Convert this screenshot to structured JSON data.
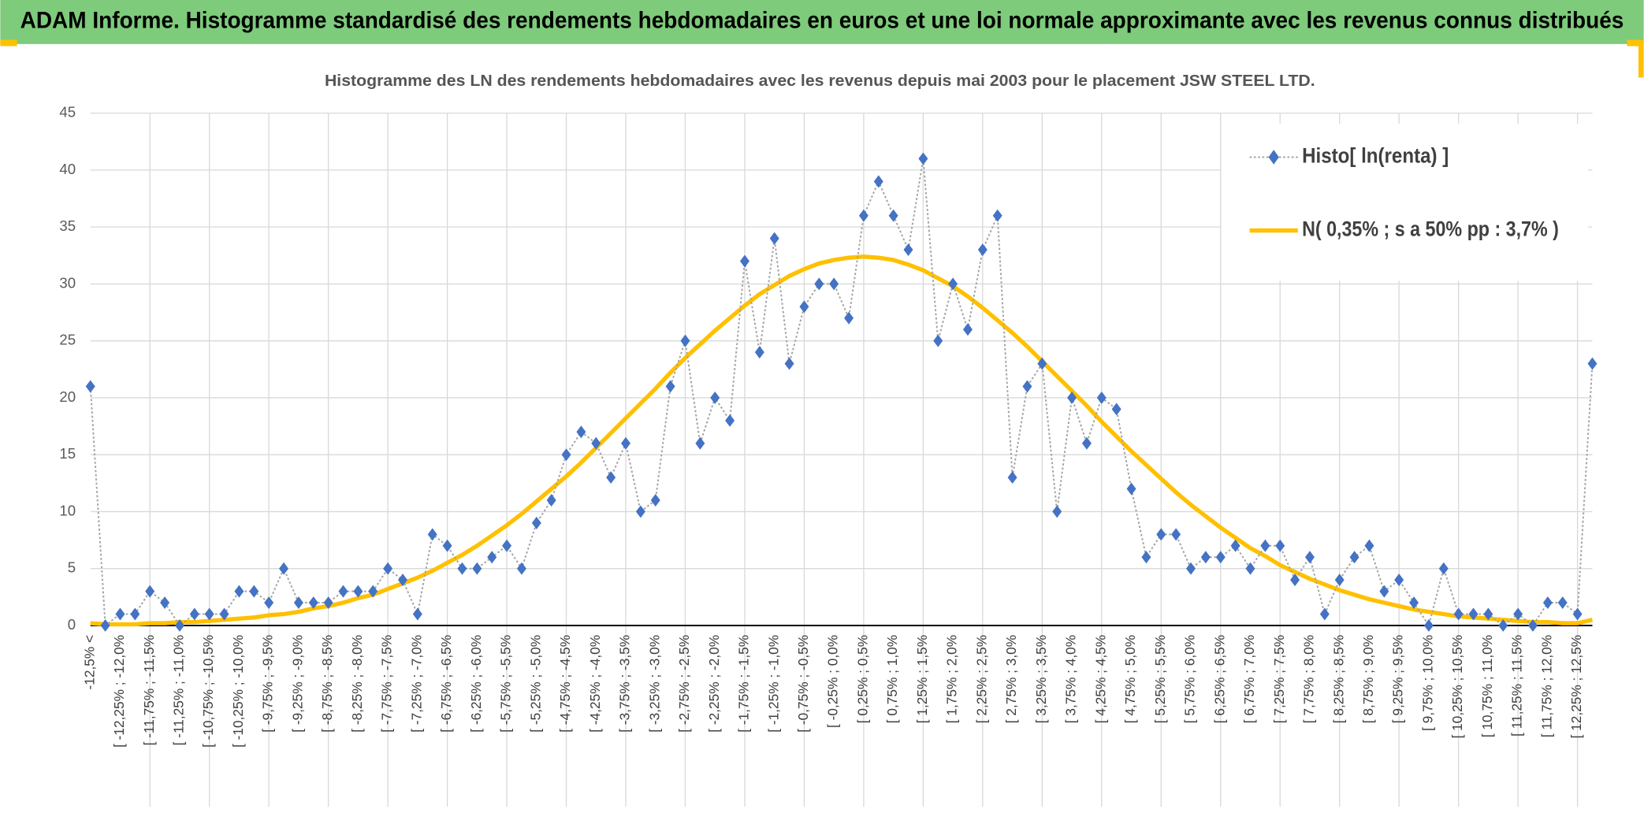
{
  "header": {
    "title": "ADAM Informe. Histogramme standardisé des rendements hebdomadaires en euros et une loi normale approximante avec les revenus connus distribués"
  },
  "chart_data": {
    "type": "line",
    "title": "Histogramme des LN des rendements hebdomadaires avec les revenus depuis mai 2003 pour le placement JSW STEEL LTD.",
    "categories": [
      "-12,5% <",
      null,
      "[ -12,25% ; -12,0%",
      null,
      "[ -11,75% ; -11,5%",
      null,
      "[ -11,25% ; -11,0%",
      null,
      "[ -10,75% ; -10,5%",
      null,
      "[ -10,25% ; -10,0%",
      null,
      "[ -9,75% ; -9,5%",
      null,
      "[ -9,25% ; -9,0%",
      null,
      "[ -8,75% ; -8,5%",
      null,
      "[ -8,25% ; -8,0%",
      null,
      "[ -7,75% ; -7,5%",
      null,
      "[ -7,25% ; -7,0%",
      null,
      "[ -6,75% ; -6,5%",
      null,
      "[ -6,25% ; -6,0%",
      null,
      "[ -5,75% ; -5,5%",
      null,
      "[ -5,25% ; -5,0%",
      null,
      "[ -4,75% ; -4,5%",
      null,
      "[ -4,25% ; -4,0%",
      null,
      "[ -3,75% ; -3,5%",
      null,
      "[ -3,25% ; -3,0%",
      null,
      "[ -2,75% ; -2,5%",
      null,
      "[ -2,25% ; -2,0%",
      null,
      "[ -1,75% ; -1,5%",
      null,
      "[ -1,25% ; -1,0%",
      null,
      "[ -0,75% ; -0,5%",
      null,
      "[ -0,25% ; 0,0%",
      null,
      "[ 0,25% ; 0,5%",
      null,
      "[ 0,75% ; 1,0%",
      null,
      "[ 1,25% ; 1,5%",
      null,
      "[ 1,75% ; 2,0%",
      null,
      "[ 2,25% ; 2,5%",
      null,
      "[ 2,75% ; 3,0%",
      null,
      "[ 3,25% ; 3,5%",
      null,
      "[ 3,75% ; 4,0%",
      null,
      "[ 4,25% ; 4,5%",
      null,
      "[ 4,75% ; 5,0%",
      null,
      "[ 5,25% ; 5,5%",
      null,
      "[ 5,75% ; 6,0%",
      null,
      "[ 6,25% ; 6,5%",
      null,
      "[ 6,75% ; 7,0%",
      null,
      "[ 7,25% ; 7,5%",
      null,
      "[ 7,75% ; 8,0%",
      null,
      "[ 8,25% ; 8,5%",
      null,
      "[ 8,75% ; 9,0%",
      null,
      "[ 9,25% ; 9,5%",
      null,
      "[ 9,75% ; 10,0%",
      null,
      "[ 10,25% ; 10,5%",
      null,
      "[ 10,75% ; 11,0%",
      null,
      "[ 11,25% ; 11,5%",
      null,
      "[ 11,75% ; 12,0%",
      null,
      "[ 12,25% ; 12,5%",
      null
    ],
    "series": [
      {
        "name": "Histo[ ln(renta) ]",
        "style": "markers",
        "color": "#4472c4",
        "line_color": "#a5a5a5",
        "values": [
          21,
          0,
          1,
          1,
          3,
          2,
          0,
          1,
          1,
          1,
          3,
          3,
          2,
          5,
          2,
          2,
          2,
          3,
          3,
          3,
          5,
          4,
          1,
          8,
          7,
          5,
          5,
          6,
          7,
          5,
          9,
          11,
          15,
          17,
          16,
          13,
          16,
          10,
          11,
          21,
          25,
          16,
          20,
          18,
          32,
          24,
          34,
          23,
          28,
          30,
          30,
          27,
          36,
          39,
          36,
          33,
          41,
          25,
          30,
          26,
          33,
          36,
          13,
          21,
          23,
          10,
          20,
          16,
          20,
          19,
          12,
          6,
          8,
          8,
          5,
          6,
          6,
          7,
          5,
          7,
          7,
          4,
          6,
          1,
          4,
          6,
          7,
          3,
          4,
          2,
          0,
          5,
          1,
          1,
          1,
          0,
          1,
          0,
          2,
          2,
          1,
          23
        ]
      },
      {
        "name": "N( 0,35% ; s a 50% pp : 3,7% )",
        "style": "line",
        "color": "#ffc000",
        "values": [
          0.2,
          0.1,
          0.1,
          0.1,
          0.2,
          0.2,
          0.3,
          0.3,
          0.4,
          0.5,
          0.6,
          0.7,
          0.9,
          1.0,
          1.2,
          1.5,
          1.7,
          2.0,
          2.4,
          2.7,
          3.2,
          3.7,
          4.2,
          4.8,
          5.5,
          6.2,
          7.0,
          7.9,
          8.8,
          9.8,
          10.9,
          12.0,
          13.1,
          14.3,
          15.6,
          16.9,
          18.2,
          19.5,
          20.8,
          22.2,
          23.5,
          24.7,
          25.9,
          27.0,
          28.1,
          29.1,
          29.9,
          30.7,
          31.3,
          31.8,
          32.1,
          32.3,
          32.4,
          32.3,
          32.1,
          31.7,
          31.2,
          30.5,
          29.8,
          28.9,
          27.9,
          26.8,
          25.7,
          24.5,
          23.2,
          21.9,
          20.6,
          19.3,
          17.9,
          16.6,
          15.3,
          14.1,
          12.9,
          11.7,
          10.6,
          9.6,
          8.6,
          7.7,
          6.8,
          6.1,
          5.3,
          4.7,
          4.1,
          3.6,
          3.1,
          2.7,
          2.3,
          2.0,
          1.7,
          1.4,
          1.2,
          1.0,
          0.8,
          0.7,
          0.6,
          0.5,
          0.4,
          0.3,
          0.3,
          0.2,
          0.2,
          0.5
        ]
      }
    ],
    "ylim": [
      0,
      45
    ],
    "yticks": [
      0,
      5,
      10,
      15,
      20,
      25,
      30,
      35,
      40,
      45
    ],
    "grid": true,
    "legend": "top-right"
  }
}
